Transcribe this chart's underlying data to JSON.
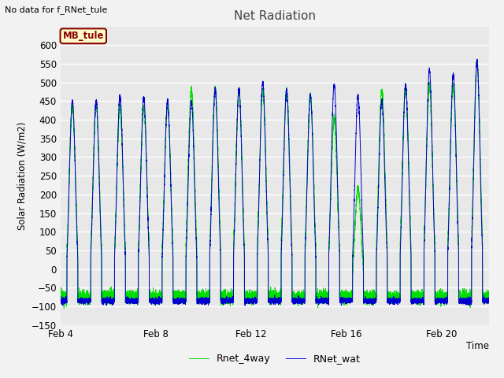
{
  "title": "Net Radiation",
  "xlabel": "Time",
  "ylabel": "Solar Radiation (W/m2)",
  "no_data_text": "No data for f_RNet_tule",
  "legend_label1": "RNet_wat",
  "legend_label2": "Rnet_4way",
  "mb_tule_label": "MB_tule",
  "color1": "#0000cc",
  "color2": "#00dd00",
  "ylim": [
    -150,
    650
  ],
  "yticks": [
    -150,
    -100,
    -50,
    0,
    50,
    100,
    150,
    200,
    250,
    300,
    350,
    400,
    450,
    500,
    550,
    600
  ],
  "bg_color": "#e8e8e8",
  "plot_bg": "#e8e8e8",
  "grid_color": "#ffffff",
  "num_days": 18,
  "x_tick_labels": [
    "Feb 4",
    "Feb 8",
    "Feb 12",
    "Feb 16",
    "Feb 20"
  ],
  "x_tick_positions": [
    0,
    4,
    8,
    12,
    16
  ],
  "blue_peaks": [
    450,
    452,
    463,
    460,
    450,
    450,
    480,
    483,
    500,
    478,
    465,
    493,
    465,
    450,
    493,
    533,
    521,
    555
  ],
  "green_peaks": [
    440,
    440,
    433,
    433,
    440,
    483,
    483,
    478,
    478,
    478,
    465,
    402,
    215,
    480,
    490,
    492,
    492,
    555
  ],
  "night_blue": -85,
  "night_green": -75
}
